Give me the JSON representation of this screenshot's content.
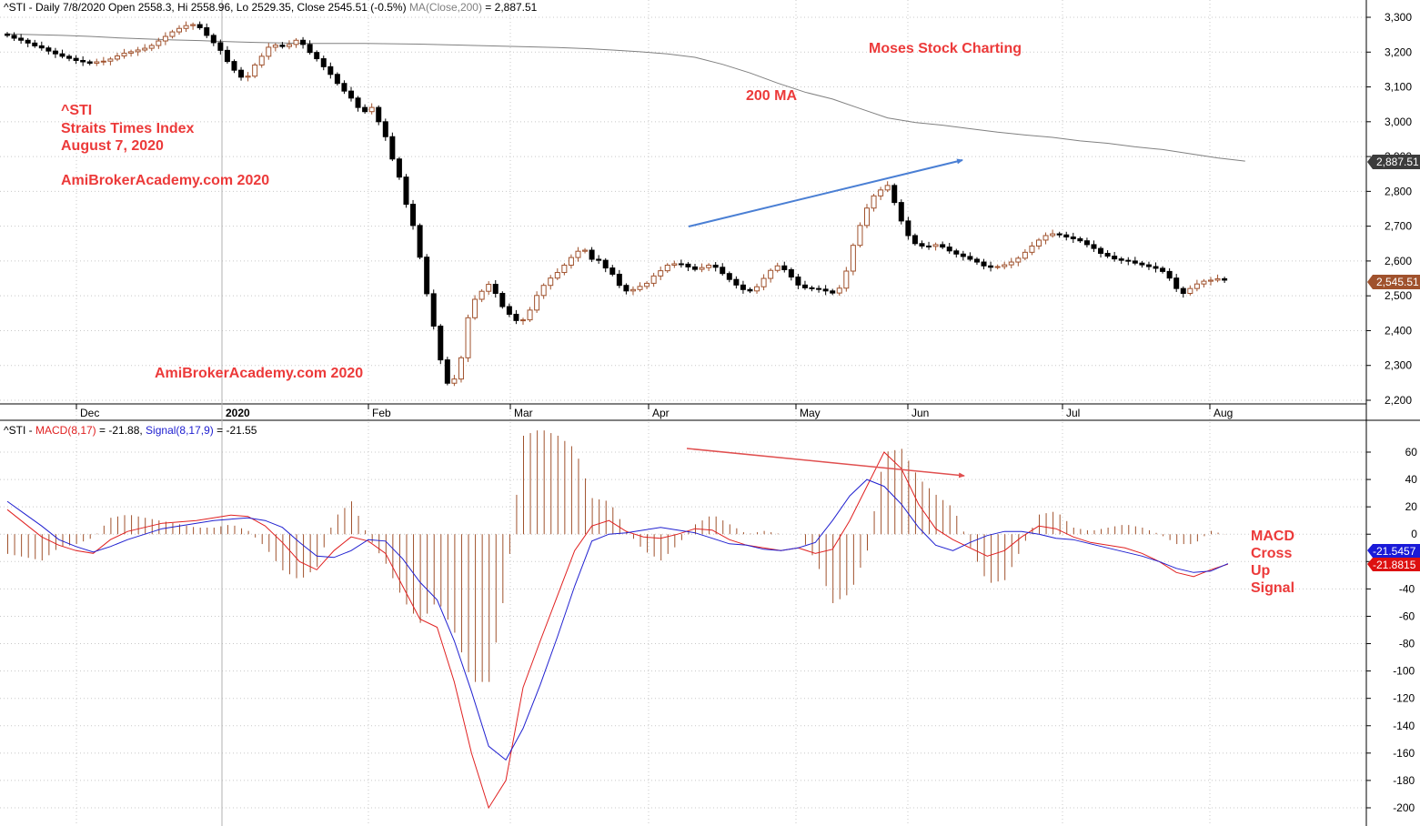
{
  "upper_header": {
    "symbol": "^STI",
    "info": " - Daily 7/8/2020 Open 2558.3, Hi 2558.96, Lo 2529.35, Close 2545.51 (-0.5%) ",
    "ma_label": "MA(Close,200)",
    "ma_value": " = 2,887.51"
  },
  "lower_header": {
    "symbol": "^STI",
    "sep": " - ",
    "macd_label": "MACD(8,17)",
    "macd_value": " = -21.88, ",
    "signal_label": "Signal(8,17,9)",
    "signal_value": " = -21.55"
  },
  "annotations": {
    "ticker": "^STI",
    "name": "Straits Times Index",
    "date": "August 7, 2020",
    "site1": "AmiBrokerAcademy.com  2020",
    "site2": "AmiBrokerAcademy.com  2020",
    "brand": "Moses Stock Charting",
    "ma_note": "200 MA",
    "macd_note": [
      "MACD",
      "Cross",
      "Up",
      "Signal"
    ]
  },
  "value_tags": {
    "ma": "2,887.51",
    "close": "2,545.51",
    "signal": "-21.5457",
    "macd": "-21.8815"
  },
  "colors": {
    "up_candle": "#a0522d",
    "down_candle": "#000000",
    "ma_line": "#808080",
    "macd_line": "#e02020",
    "signal_line": "#2020d0",
    "histogram": "#a0522d",
    "annotation": "#ec3a3a",
    "up_arrow": "#4a7fd4",
    "down_arrow": "#e05050",
    "grid": "#c8c8c8"
  },
  "chart_data": [
    {
      "type": "candlestick",
      "title": "^STI - Daily",
      "ylim": [
        2180,
        3340
      ],
      "y_ticks": [
        2200,
        2300,
        2400,
        2500,
        2600,
        2700,
        2800,
        2900,
        3000,
        3100,
        3200,
        3300
      ],
      "y_tick_labels": [
        "2,200",
        "2,300",
        "2,400",
        "2,500",
        "2,600",
        "2,700",
        "2,800",
        "2,900",
        "3,000",
        "3,100",
        "3,200",
        "3,300"
      ],
      "x_labels": [
        "Dec",
        "2020",
        "Feb",
        "Mar",
        "Apr",
        "May",
        "Jun",
        "Jul",
        "Aug"
      ],
      "bars": 178,
      "close": [
        3248,
        3240,
        3234,
        3226,
        3218,
        3212,
        3203,
        3195,
        3188,
        3182,
        3176,
        3172,
        3168,
        3172,
        3174,
        3180,
        3189,
        3197,
        3201,
        3206,
        3211,
        3219,
        3232,
        3245,
        3258,
        3268,
        3276,
        3279,
        3270,
        3248,
        3227,
        3205,
        3173,
        3148,
        3128,
        3131,
        3163,
        3188,
        3214,
        3220,
        3216,
        3222,
        3234,
        3222,
        3199,
        3181,
        3158,
        3136,
        3110,
        3088,
        3068,
        3041,
        3029,
        3041,
        3000,
        2957,
        2893,
        2841,
        2763,
        2702,
        2611,
        2506,
        2413,
        2316,
        2249,
        2261,
        2322,
        2437,
        2490,
        2513,
        2533,
        2507,
        2469,
        2447,
        2429,
        2431,
        2459,
        2501,
        2530,
        2551,
        2567,
        2588,
        2610,
        2628,
        2631,
        2605,
        2602,
        2580,
        2562,
        2530,
        2514,
        2518,
        2527,
        2536,
        2557,
        2572,
        2588,
        2592,
        2591,
        2583,
        2576,
        2581,
        2588,
        2582,
        2564,
        2547,
        2531,
        2518,
        2514,
        2526,
        2550,
        2573,
        2586,
        2575,
        2554,
        2531,
        2523,
        2521,
        2519,
        2514,
        2508,
        2522,
        2571,
        2645,
        2702,
        2752,
        2787,
        2804,
        2817,
        2768,
        2715,
        2673,
        2650,
        2643,
        2642,
        2647,
        2640,
        2629,
        2620,
        2613,
        2605,
        2597,
        2586,
        2582,
        2584,
        2589,
        2597,
        2608,
        2625,
        2643,
        2660,
        2673,
        2678,
        2675,
        2669,
        2664,
        2658,
        2647,
        2636,
        2622,
        2614,
        2606,
        2602,
        2600,
        2594,
        2589,
        2584,
        2579,
        2570,
        2551,
        2521,
        2507,
        2521,
        2534,
        2542,
        2545,
        2549,
        2545
      ],
      "ma200": [
        3252,
        3250,
        3248,
        3245,
        3241,
        3238,
        3235,
        3233,
        3230,
        3228,
        3226,
        3225,
        3225,
        3225,
        3224,
        3223,
        3221,
        3219,
        3217,
        3215,
        3213,
        3210,
        3206,
        3201,
        3195,
        3185,
        3165,
        3140,
        3111,
        3085,
        3065,
        3038,
        3011,
        2998,
        2990,
        2980,
        2970,
        2962,
        2955,
        2945,
        2938,
        2928,
        2920,
        2908,
        2896,
        2887
      ],
      "ma200_step": 4
    },
    {
      "type": "macd",
      "title": "^STI - MACD(8,17), Signal(8,17,9)",
      "ylim": [
        -205,
        75
      ],
      "y_ticks": [
        60,
        40,
        20,
        0,
        -20,
        -40,
        -60,
        -80,
        -100,
        -120,
        -140,
        -160,
        -180,
        -200
      ],
      "y_tick_labels": [
        "60",
        "40",
        "20",
        "0",
        "-20",
        "-40",
        "-60",
        "-80",
        "-100",
        "-120",
        "-140",
        "-160",
        "-180",
        "-200"
      ],
      "series": [
        {
          "name": "MACD(8,17)",
          "values": [
            18,
            8,
            -2,
            -8,
            -12,
            -14,
            -4,
            2,
            5,
            8,
            9,
            10,
            12,
            14,
            13,
            6,
            -6,
            -20,
            -26,
            -12,
            -2,
            -5,
            -14,
            -38,
            -62,
            -68,
            -108,
            -160,
            -200,
            -180,
            -112,
            -78,
            -45,
            -12,
            6,
            10,
            2,
            -2,
            -3,
            0,
            4,
            3,
            -4,
            -8,
            -10,
            -12,
            -10,
            -14,
            -11,
            10,
            35,
            60,
            48,
            22,
            4,
            -4,
            -10,
            -16,
            -12,
            -2,
            6,
            4,
            -2,
            -6,
            -8,
            -10,
            -14,
            -20,
            -28,
            -31,
            -26,
            -21.88
          ]
        },
        {
          "name": "Signal(8,17,9)",
          "values": [
            24,
            15,
            6,
            -4,
            -9,
            -13,
            -9,
            -4,
            0,
            4,
            6,
            8,
            10,
            11,
            12,
            10,
            5,
            -6,
            -16,
            -17,
            -12,
            -4,
            -5,
            -18,
            -35,
            -48,
            -78,
            -115,
            -155,
            -165,
            -142,
            -110,
            -75,
            -38,
            -5,
            0,
            1,
            3,
            5,
            3,
            1,
            -3,
            -7,
            -8,
            -11,
            -12,
            -10,
            -6,
            10,
            28,
            40,
            35,
            22,
            5,
            -8,
            -12,
            -6,
            -1,
            2,
            2,
            0,
            -3,
            -4,
            -7,
            -10,
            -13,
            -16,
            -20,
            -25,
            -28,
            -27,
            -21.55
          ]
        }
      ],
      "points_step": 2.5
    }
  ]
}
